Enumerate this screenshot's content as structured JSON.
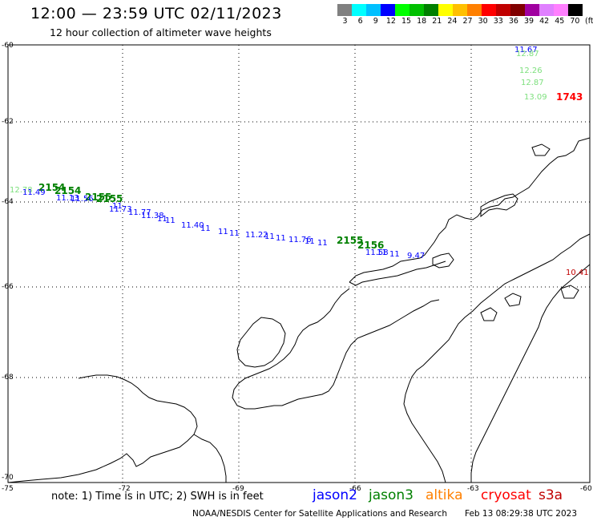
{
  "header": {
    "title": "12:00 — 23:59 UTC 02/11/2023",
    "subtitle": "12 hour collection of altimeter wave heights"
  },
  "colorbar": {
    "colors": [
      "#808080",
      "#00ffff",
      "#00c0ff",
      "#0000ff",
      "#00ff00",
      "#00c000",
      "#008000",
      "#ffff00",
      "#ffc000",
      "#ff8000",
      "#ff0000",
      "#c00000",
      "#800000",
      "#a000a0",
      "#e080ff",
      "#ff80ff",
      "#000000"
    ],
    "labels": [
      "3",
      "6",
      "9",
      "12",
      "15",
      "18",
      "21",
      "24",
      "27",
      "30",
      "33",
      "36",
      "39",
      "42",
      "45",
      "70"
    ],
    "unit": "(ft)"
  },
  "axes": {
    "lat_labels": [
      "-60",
      "-62",
      "-64",
      "-66",
      "-68",
      "-70"
    ],
    "lon_labels": [
      "-75",
      "-72",
      "-69",
      "-66",
      "-63",
      "-60"
    ]
  },
  "observations": [
    {
      "label": "11.67",
      "color": "#0000ff"
    },
    {
      "label": "12.87",
      "color": "#7ee07e"
    },
    {
      "label": "12.26",
      "color": "#7ee07e"
    },
    {
      "label": "12.87",
      "color": "#7ee07e"
    },
    {
      "label": "13.09",
      "color": "#7ee07e"
    },
    {
      "label": "1743",
      "color": "#ff0000"
    },
    {
      "label": "12.78",
      "color": "#7ee07e"
    },
    {
      "label": "2154",
      "color": "#008000"
    },
    {
      "label": "11.49",
      "color": "#0000ff"
    },
    {
      "label": "2154",
      "color": "#008000"
    },
    {
      "label": "2155",
      "color": "#008000"
    },
    {
      "label": "11.13",
      "color": "#0000ff"
    },
    {
      "label": "11.56",
      "color": "#0000ff"
    },
    {
      "label": "2155",
      "color": "#008000"
    },
    {
      "label": "11.77",
      "color": "#0000ff"
    },
    {
      "label": "11.73",
      "color": "#0000ff"
    },
    {
      "label": "11.38",
      "color": "#0000ff"
    },
    {
      "label": "11.40",
      "color": "#0000ff"
    },
    {
      "label": "11.22",
      "color": "#0000ff"
    },
    {
      "label": "11.76",
      "color": "#0000ff"
    },
    {
      "label": "2155",
      "color": "#008000"
    },
    {
      "label": "2156",
      "color": "#008000"
    },
    {
      "label": "11.58",
      "color": "#0000ff"
    },
    {
      "label": "9.47",
      "color": "#0000ff"
    },
    {
      "label": "10.41",
      "color": "#c00000"
    }
  ],
  "footer": {
    "note": "note:  1) Time is in UTC;  2) SWH is in feet",
    "satellites": [
      {
        "name": "jason2",
        "color": "#0000ff"
      },
      {
        "name": "jason3",
        "color": "#008000"
      },
      {
        "name": "altika",
        "color": "#ff8000"
      },
      {
        "name": "cryosat",
        "color": "#ff0000"
      },
      {
        "name": "s3a",
        "color": "#c00000"
      }
    ],
    "credit": "NOAA/NESDIS Center for Satellite Applications and Research",
    "timestamp": "Feb 13 08:29:38 UTC 2023"
  }
}
